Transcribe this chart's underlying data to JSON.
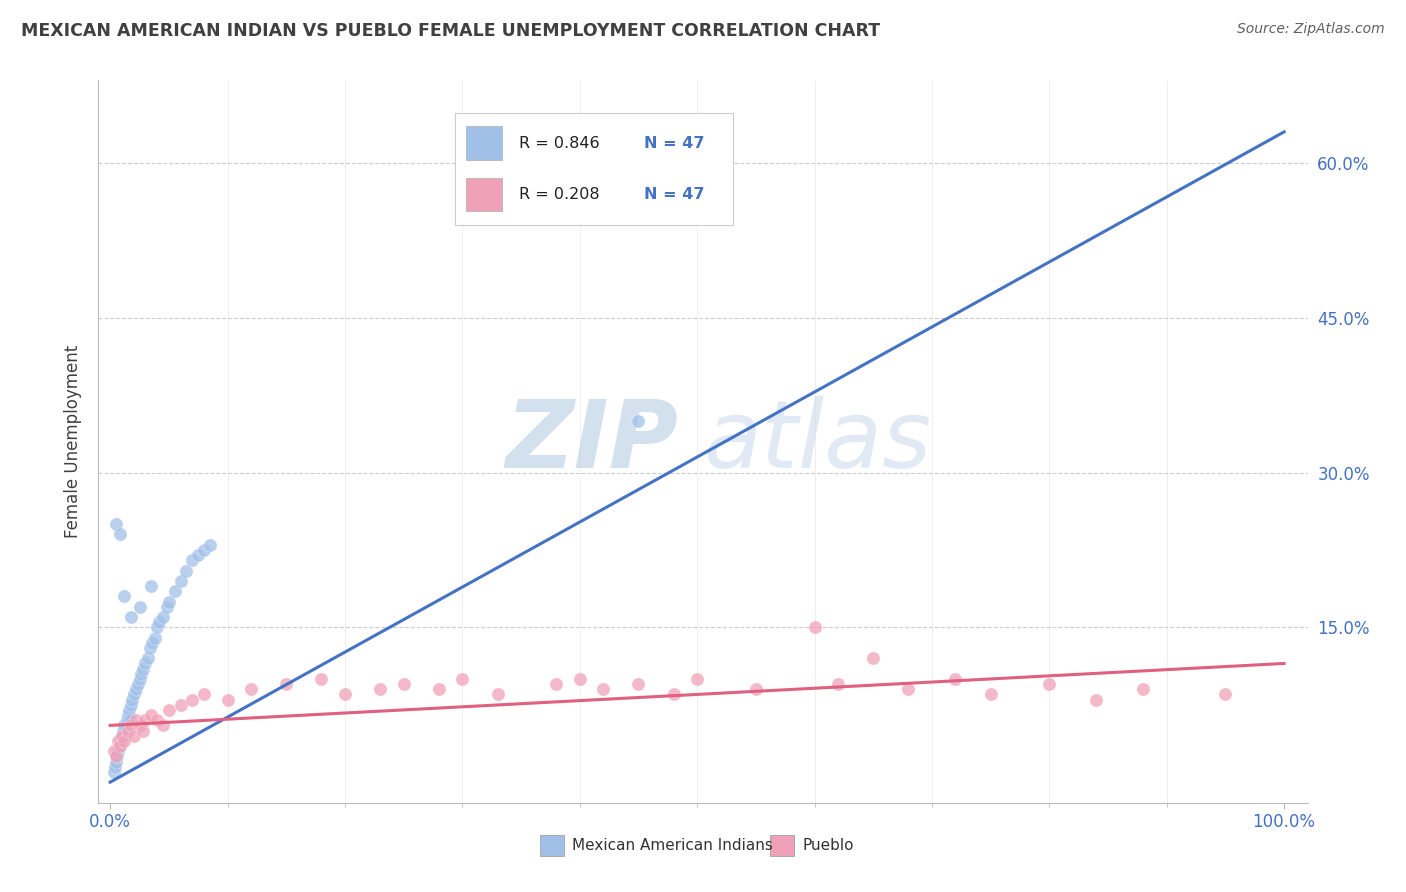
{
  "title": "MEXICAN AMERICAN INDIAN VS PUEBLO FEMALE UNEMPLOYMENT CORRELATION CHART",
  "source": "Source: ZipAtlas.com",
  "ylabel": "Female Unemployment",
  "xlim": [
    -0.01,
    1.02
  ],
  "ylim": [
    -0.02,
    0.68
  ],
  "x_tick_labels": [
    "0.0%",
    "100.0%"
  ],
  "x_tick_pos": [
    0.0,
    1.0
  ],
  "y_tick_labels": [
    "15.0%",
    "30.0%",
    "45.0%",
    "60.0%"
  ],
  "y_tick_values": [
    0.15,
    0.3,
    0.45,
    0.6
  ],
  "watermark_zip": "ZIP",
  "watermark_atlas": "atlas",
  "legend_entries": [
    {
      "r": "R = 0.846",
      "n": "N = 47",
      "color": "#A8C8F0"
    },
    {
      "r": "R = 0.208",
      "n": "N = 47",
      "color": "#F4A8C0"
    }
  ],
  "legend_label_blue": "Mexican American Indians",
  "legend_label_pink": "Pueblo",
  "blue_color": "#A0C0E8",
  "pink_color": "#F0A0B8",
  "line_blue": "#4472C4",
  "line_pink": "#E06080",
  "text_blue": "#4472C4",
  "title_color": "#404040",
  "source_color": "#606060",
  "ylabel_color": "#404040",
  "grid_color": "#CCCCCC",
  "background_color": "#FFFFFF",
  "blue_x": [
    0.003,
    0.004,
    0.005,
    0.006,
    0.007,
    0.008,
    0.009,
    0.01,
    0.011,
    0.012,
    0.013,
    0.014,
    0.015,
    0.016,
    0.017,
    0.018,
    0.019,
    0.02,
    0.022,
    0.024,
    0.025,
    0.026,
    0.028,
    0.03,
    0.032,
    0.034,
    0.036,
    0.038,
    0.04,
    0.042,
    0.045,
    0.048,
    0.05,
    0.055,
    0.06,
    0.065,
    0.07,
    0.075,
    0.08,
    0.085,
    0.005,
    0.008,
    0.012,
    0.018,
    0.025,
    0.035,
    0.45
  ],
  "blue_y": [
    0.01,
    0.015,
    0.02,
    0.025,
    0.03,
    0.035,
    0.04,
    0.045,
    0.05,
    0.055,
    0.045,
    0.06,
    0.065,
    0.07,
    0.06,
    0.075,
    0.08,
    0.085,
    0.09,
    0.095,
    0.1,
    0.105,
    0.11,
    0.115,
    0.12,
    0.13,
    0.135,
    0.14,
    0.15,
    0.155,
    0.16,
    0.17,
    0.175,
    0.185,
    0.195,
    0.205,
    0.215,
    0.22,
    0.225,
    0.23,
    0.25,
    0.24,
    0.18,
    0.16,
    0.17,
    0.19,
    0.35
  ],
  "pink_x": [
    0.003,
    0.005,
    0.007,
    0.008,
    0.01,
    0.012,
    0.015,
    0.018,
    0.02,
    0.022,
    0.025,
    0.028,
    0.03,
    0.035,
    0.04,
    0.045,
    0.05,
    0.06,
    0.07,
    0.08,
    0.1,
    0.12,
    0.15,
    0.18,
    0.2,
    0.23,
    0.25,
    0.28,
    0.3,
    0.33,
    0.38,
    0.4,
    0.42,
    0.45,
    0.48,
    0.5,
    0.55,
    0.6,
    0.62,
    0.65,
    0.68,
    0.72,
    0.75,
    0.8,
    0.84,
    0.88,
    0.95
  ],
  "pink_y": [
    0.03,
    0.025,
    0.04,
    0.035,
    0.045,
    0.04,
    0.05,
    0.055,
    0.045,
    0.06,
    0.055,
    0.05,
    0.06,
    0.065,
    0.06,
    0.055,
    0.07,
    0.075,
    0.08,
    0.085,
    0.08,
    0.09,
    0.095,
    0.1,
    0.085,
    0.09,
    0.095,
    0.09,
    0.1,
    0.085,
    0.095,
    0.1,
    0.09,
    0.095,
    0.085,
    0.1,
    0.09,
    0.15,
    0.095,
    0.12,
    0.09,
    0.1,
    0.085,
    0.095,
    0.08,
    0.09,
    0.085
  ],
  "blue_line_x": [
    0.0,
    1.0
  ],
  "blue_line_y": [
    0.0,
    0.63
  ],
  "pink_line_x": [
    0.0,
    1.0
  ],
  "pink_line_y": [
    0.055,
    0.115
  ]
}
